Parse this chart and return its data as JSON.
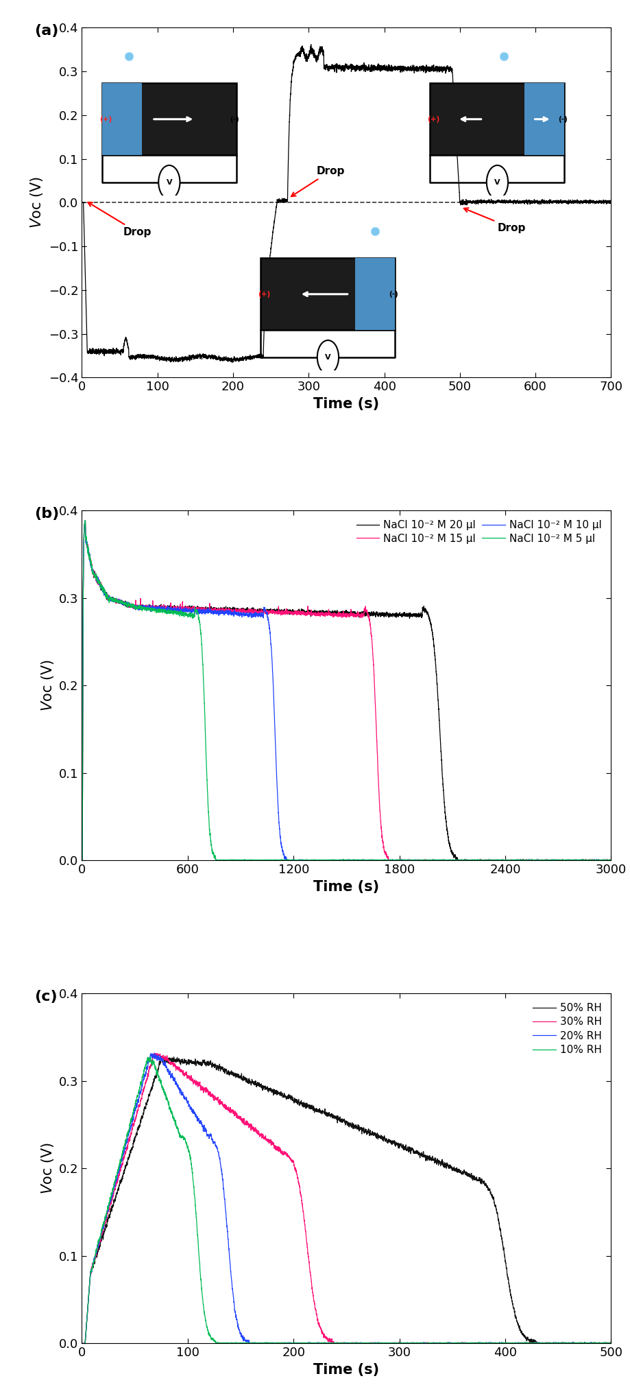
{
  "panel_a": {
    "xlim": [
      0,
      700
    ],
    "ylim": [
      -0.4,
      0.4
    ],
    "xlabel": "Time (s)",
    "ylabel": "Voc (V)",
    "label": "(a)",
    "xticks": [
      0,
      100,
      200,
      300,
      400,
      500,
      600,
      700
    ],
    "yticks": [
      -0.4,
      -0.3,
      -0.2,
      -0.1,
      0.0,
      0.1,
      0.2,
      0.3,
      0.4
    ]
  },
  "panel_b": {
    "xlim": [
      0,
      3000
    ],
    "ylim": [
      0,
      0.4
    ],
    "xlabel": "Time (s)",
    "ylabel": "Voc (V)",
    "label": "(b)",
    "xticks": [
      0,
      600,
      1200,
      1800,
      2400,
      3000
    ],
    "yticks": [
      0.0,
      0.1,
      0.2,
      0.3,
      0.4
    ],
    "legend": [
      {
        "label": "NaCl 10⁻² M 20 μl",
        "color": "#000000"
      },
      {
        "label": "NaCl 10⁻² M 15 μl",
        "color": "#ff1177"
      },
      {
        "label": "NaCl 10⁻² M 10 μl",
        "color": "#2244ff"
      },
      {
        "label": "NaCl 10⁻² M 5 μl",
        "color": "#00bb55"
      }
    ]
  },
  "panel_c": {
    "xlim": [
      0,
      500
    ],
    "ylim": [
      0,
      0.4
    ],
    "xlabel": "Time (s)",
    "ylabel": "Voc (V)",
    "label": "(c)",
    "xticks": [
      0,
      100,
      200,
      300,
      400,
      500
    ],
    "yticks": [
      0.0,
      0.1,
      0.2,
      0.3,
      0.4
    ],
    "legend": [
      {
        "label": "50% RH",
        "color": "#111111"
      },
      {
        "label": "30% RH",
        "color": "#ff1177"
      },
      {
        "label": "20% RH",
        "color": "#2244ff"
      },
      {
        "label": "10% RH",
        "color": "#00bb55"
      }
    ]
  },
  "background_color": "#ffffff"
}
